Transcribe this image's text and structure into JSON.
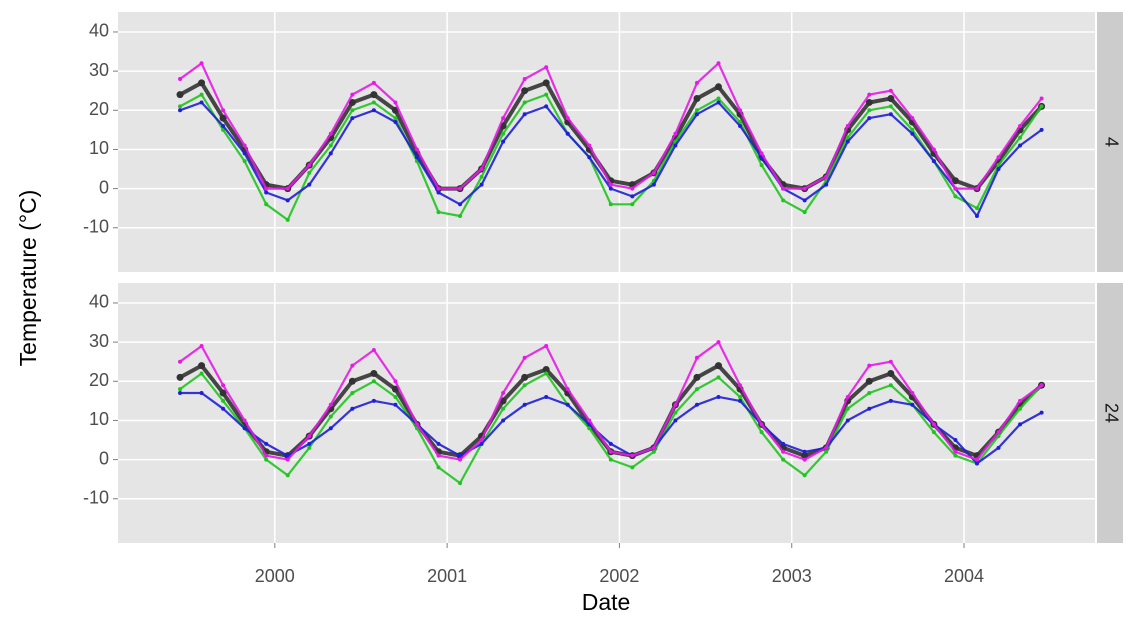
{
  "chart_data": {
    "type": "line",
    "xlabel": "Date",
    "ylabel": "Temperature (°C)",
    "xlim": [
      1999.09,
      2004.76
    ],
    "xticks": [
      2000,
      2001,
      2002,
      2003,
      2004
    ],
    "ylim": [
      -21.3,
      45.1
    ],
    "yticks": [
      -10,
      0,
      10,
      20,
      30,
      40
    ],
    "grid": true,
    "x": [
      1999.45,
      1999.575,
      1999.7,
      1999.825,
      1999.95,
      2000.075,
      2000.2,
      2000.325,
      2000.45,
      2000.575,
      2000.7,
      2000.825,
      2000.95,
      2001.075,
      2001.2,
      2001.325,
      2001.45,
      2001.575,
      2001.7,
      2001.825,
      2001.95,
      2002.075,
      2002.2,
      2002.325,
      2002.45,
      2002.575,
      2002.7,
      2002.825,
      2002.95,
      2003.075,
      2003.2,
      2003.325,
      2003.45,
      2003.575,
      2003.7,
      2003.825,
      2003.95,
      2004.075,
      2004.2,
      2004.325,
      2004.45
    ],
    "panels": [
      {
        "strip": "4",
        "series": [
          {
            "color": "#333333",
            "values": [
              24,
              27,
              18,
              10,
              1,
              0,
              6,
              13,
              22,
              24,
              20,
              9,
              0,
              0,
              5,
              16,
              25,
              27,
              17,
              10,
              2,
              1,
              4,
              13,
              23,
              26,
              19,
              8,
              1,
              0,
              3,
              15,
              22,
              23,
              17,
              9,
              2,
              0,
              7,
              15,
              21
            ]
          },
          {
            "color": "#1fc41f",
            "values": [
              21,
              24,
              15,
              7,
              -4,
              -8,
              4,
              11,
              20,
              22,
              18,
              7,
              -6,
              -7,
              3,
              14,
              22,
              24,
              14,
              8,
              -4,
              -4,
              2,
              12,
              20,
              23,
              17,
              6,
              -3,
              -6,
              2,
              13,
              20,
              21,
              15,
              7,
              -2,
              -5,
              6,
              13,
              21
            ]
          },
          {
            "color": "#1f1fd6",
            "values": [
              20,
              22,
              16,
              9,
              -1,
              -3,
              1,
              9,
              18,
              20,
              17,
              8,
              -1,
              -4,
              1,
              12,
              19,
              21,
              14,
              8,
              0,
              -2,
              1,
              11,
              19,
              22,
              16,
              8,
              0,
              -3,
              1,
              12,
              18,
              19,
              14,
              7,
              0,
              -7,
              5,
              11,
              15
            ]
          },
          {
            "color": "#e619e6",
            "values": [
              28,
              32,
              20,
              11,
              0,
              0,
              6,
              14,
              24,
              27,
              22,
              10,
              0,
              0,
              5,
              18,
              28,
              31,
              18,
              11,
              1,
              0,
              4,
              14,
              27,
              32,
              20,
              9,
              0,
              0,
              3,
              16,
              24,
              25,
              18,
              10,
              0,
              0,
              8,
              16,
              23
            ]
          }
        ]
      },
      {
        "strip": "24",
        "series": [
          {
            "color": "#333333",
            "values": [
              21,
              24,
              17,
              9,
              2,
              1,
              6,
              13,
              20,
              22,
              18,
              9,
              2,
              1,
              6,
              15,
              21,
              23,
              17,
              9,
              2,
              1,
              3,
              14,
              21,
              24,
              18,
              9,
              3,
              1,
              3,
              15,
              20,
              22,
              16,
              9,
              3,
              1,
              7,
              14,
              19
            ]
          },
          {
            "color": "#1fc41f",
            "values": [
              18,
              22,
              15,
              8,
              0,
              -4,
              3,
              11,
              17,
              20,
              16,
              8,
              -2,
              -6,
              4,
              13,
              19,
              22,
              14,
              8,
              0,
              -2,
              2,
              12,
              18,
              21,
              16,
              7,
              0,
              -4,
              2,
              13,
              17,
              19,
              14,
              7,
              1,
              -1,
              6,
              13,
              19
            ]
          },
          {
            "color": "#1f1fd6",
            "values": [
              17,
              17,
              13,
              8,
              4,
              1,
              4,
              8,
              13,
              15,
              14,
              9,
              4,
              1,
              4,
              10,
              14,
              16,
              14,
              9,
              4,
              1,
              3,
              10,
              14,
              16,
              15,
              9,
              4,
              2,
              3,
              10,
              13,
              15,
              14,
              9,
              5,
              -1,
              3,
              9,
              12
            ]
          },
          {
            "color": "#e619e6",
            "values": [
              25,
              29,
              19,
              10,
              1,
              0,
              6,
              14,
              24,
              28,
              20,
              9,
              1,
              0,
              5,
              17,
              26,
              29,
              18,
              10,
              2,
              1,
              3,
              14,
              26,
              30,
              19,
              9,
              2,
              0,
              3,
              16,
              24,
              25,
              17,
              9,
              2,
              0,
              7,
              15,
              19
            ]
          }
        ]
      }
    ]
  }
}
